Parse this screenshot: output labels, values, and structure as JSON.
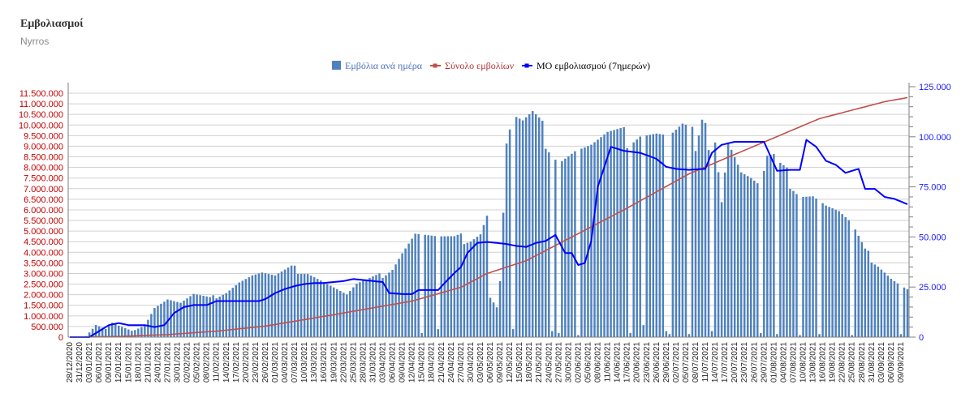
{
  "header": {
    "title": "Εμβολιασμοί",
    "subtitle": "Nyrros"
  },
  "colors": {
    "bars": "#4f81bd",
    "total": "#c0504d",
    "avg": "#0000ff",
    "left_axis": "#c00000",
    "right_axis": "#1a1aff",
    "grid": "#d0d0d0"
  },
  "chart_data": {
    "type": "bar",
    "legend": {
      "position": "top-center",
      "items": [
        {
          "label": "Εμβόλια ανά ημέρα",
          "symbol": "bar"
        },
        {
          "label": "Σύνολο εμβολίων",
          "symbol": "line"
        },
        {
          "label": "ΜΟ εμβολιασμού (7ημερών)",
          "symbol": "line"
        }
      ]
    },
    "y_left": {
      "min": 0,
      "max": 11500000,
      "step": 500000,
      "ticks": [
        "0",
        "500.000",
        "1.000.000",
        "1.500.000",
        "2.000.000",
        "2.500.000",
        "3.000.000",
        "3.500.000",
        "4.000.000",
        "4.500.000",
        "5.000.000",
        "5.500.000",
        "6.000.000",
        "6.500.000",
        "7.000.000",
        "7.500.000",
        "8.000.000",
        "8.500.000",
        "9.000.000",
        "9.500.000",
        "10.000.000",
        "10.500.000",
        "11.000.000",
        "11.500.000"
      ]
    },
    "y_right": {
      "min": 0,
      "max": 125000,
      "ticks": [
        {
          "label": "0",
          "value": 0
        },
        {
          "label": "25.000",
          "value": 25000
        },
        {
          "label": "50.000",
          "value": 50000
        },
        {
          "label": "75.000",
          "value": 75000
        },
        {
          "label": "100.000",
          "value": 100000
        },
        {
          "label": "125.000",
          "value": 125000
        }
      ]
    },
    "x": {
      "start": "28/12/2020",
      "end": "10/09/2021",
      "tick_labels": [
        "28/12/2020",
        "31/12/2020",
        "03/01/2021",
        "06/01/2021",
        "09/01/2021",
        "12/01/2021",
        "15/01/2021",
        "18/01/2021",
        "21/01/2021",
        "24/01/2021",
        "27/01/2021",
        "30/01/2021",
        "02/02/2021",
        "05/02/2021",
        "08/02/2021",
        "11/02/2021",
        "14/02/2021",
        "17/02/2021",
        "20/02/2021",
        "23/02/2021",
        "26/02/2021",
        "01/03/2021",
        "04/03/2021",
        "07/03/2021",
        "10/03/2021",
        "13/03/2021",
        "16/03/2021",
        "19/03/2021",
        "22/03/2021",
        "25/03/2021",
        "28/03/2021",
        "31/03/2021",
        "03/04/2021",
        "06/04/2021",
        "09/04/2021",
        "12/04/2021",
        "15/04/2021",
        "18/04/2021",
        "21/04/2021",
        "24/04/2021",
        "27/04/2021",
        "30/04/2021",
        "03/05/2021",
        "06/05/2021",
        "09/05/2021",
        "12/05/2021",
        "15/05/2021",
        "18/05/2021",
        "21/05/2021",
        "24/05/2021",
        "27/05/2021",
        "30/05/2021",
        "02/06/2021",
        "05/06/2021",
        "08/06/2021",
        "11/06/2021",
        "14/06/2021",
        "17/06/2021",
        "20/06/2021",
        "23/06/2021",
        "26/06/2021",
        "29/06/2021",
        "02/07/2021",
        "05/07/2021",
        "08/07/2021",
        "11/07/2021",
        "14/07/2021",
        "17/07/2021",
        "20/07/2021",
        "23/07/2021",
        "26/07/2021",
        "29/07/2021",
        "01/08/2021",
        "04/08/2021",
        "07/08/2021",
        "10/08/2021",
        "13/08/2021",
        "16/08/2021",
        "19/08/2021",
        "22/08/2021",
        "25/08/2021",
        "28/08/2021",
        "31/08/2021",
        "03/09/2021",
        "06/09/2021",
        "09/09/2021"
      ]
    },
    "series": [
      {
        "name": "Εμβόλια ανά ημέρα",
        "type": "bar",
        "axis": "right",
        "keypoints": [
          [
            0,
            0
          ],
          [
            3,
            0
          ],
          [
            5,
            500
          ],
          [
            8,
            6000
          ],
          [
            11,
            4000
          ],
          [
            13,
            7000
          ],
          [
            15,
            5500
          ],
          [
            19,
            3000
          ],
          [
            23,
            6000
          ],
          [
            26,
            15000
          ],
          [
            30,
            19000
          ],
          [
            34,
            17000
          ],
          [
            38,
            21000
          ],
          [
            43,
            19000
          ],
          [
            48,
            23000
          ],
          [
            52,
            28000
          ],
          [
            56,
            31000
          ],
          [
            59,
            32000
          ],
          [
            63,
            30000
          ],
          [
            68,
            34000
          ],
          [
            73,
            33000
          ],
          [
            78,
            28000
          ],
          [
            80,
            26000
          ],
          [
            85,
            21000
          ],
          [
            88,
            26000
          ],
          [
            95,
            30000
          ],
          [
            99,
            35000
          ],
          [
            102,
            43000
          ],
          [
            106,
            52000
          ],
          [
            113,
            49000
          ],
          [
            118,
            48000
          ],
          [
            123,
            50000
          ],
          [
            126,
            53000
          ],
          [
            128,
            62000
          ],
          [
            129,
            20000
          ],
          [
            131,
            15000
          ],
          [
            132,
            28000
          ],
          [
            134,
            96000
          ],
          [
            136,
            109000
          ],
          [
            139,
            105000
          ],
          [
            142,
            108000
          ],
          [
            145,
            102000
          ],
          [
            150,
            90000
          ],
          [
            155,
            94000
          ],
          [
            160,
            95000
          ],
          [
            165,
            99000
          ],
          [
            170,
            99000
          ],
          [
            175,
            104000
          ],
          [
            180,
            103000
          ],
          [
            184,
            100000
          ],
          [
            186,
            102000
          ],
          [
            188,
            104000
          ],
          [
            191,
            101000
          ],
          [
            192,
            89000
          ],
          [
            194,
            103000
          ],
          [
            196,
            99000
          ],
          [
            198,
            102000
          ],
          [
            200,
            70000
          ],
          [
            202,
            100000
          ],
          [
            206,
            83000
          ],
          [
            209,
            79000
          ],
          [
            212,
            74000
          ],
          [
            214,
            88000
          ],
          [
            216,
            88000
          ],
          [
            218,
            83000
          ],
          [
            222,
            77000
          ],
          [
            224,
            73000
          ],
          [
            228,
            72000
          ],
          [
            232,
            66000
          ],
          [
            236,
            62000
          ],
          [
            240,
            55000
          ],
          [
            244,
            42000
          ],
          [
            248,
            37000
          ],
          [
            252,
            30000
          ],
          [
            255,
            26000
          ],
          [
            258,
            23000
          ],
          [
            262,
            23000
          ],
          [
            266,
            27000
          ],
          [
            270,
            32000
          ],
          [
            274,
            31000
          ],
          [
            277,
            28000
          ],
          [
            280,
            27000
          ],
          [
            283,
            28000
          ],
          [
            286,
            28000
          ]
        ],
        "dips": [
          [
            108,
            2000
          ],
          [
            113,
            4000
          ],
          [
            136,
            4000
          ],
          [
            148,
            3000
          ],
          [
            150,
            2000
          ],
          [
            156,
            1000
          ],
          [
            172,
            2000
          ],
          [
            176,
            6000
          ],
          [
            183,
            3000
          ],
          [
            184,
            1500
          ],
          [
            190,
            1500
          ],
          [
            197,
            3000
          ],
          [
            212,
            2000
          ],
          [
            217,
            1500
          ],
          [
            224,
            1000
          ],
          [
            230,
            1500
          ],
          [
            240,
            1000
          ],
          [
            255,
            1500
          ],
          [
            270,
            1000
          ],
          [
            285,
            500
          ]
        ]
      },
      {
        "name": "Σύνολο εμβολίων",
        "type": "line",
        "axis": "left",
        "keypoints": [
          [
            0,
            0
          ],
          [
            15,
            30000
          ],
          [
            30,
            120000
          ],
          [
            45,
            280000
          ],
          [
            60,
            520000
          ],
          [
            75,
            900000
          ],
          [
            90,
            1300000
          ],
          [
            105,
            1700000
          ],
          [
            120,
            2350000
          ],
          [
            128,
            3000000
          ],
          [
            132,
            3200000
          ],
          [
            140,
            3600000
          ],
          [
            150,
            4400000
          ],
          [
            170,
            6000000
          ],
          [
            190,
            7700000
          ],
          [
            210,
            9000000
          ],
          [
            230,
            10300000
          ],
          [
            250,
            11100000
          ],
          [
            270,
            11650000
          ],
          [
            287,
            12200000
          ]
        ]
      },
      {
        "name": "ΜΟ εμβολιασμού (7ημερών)",
        "type": "line",
        "axis": "right",
        "keypoints": [
          [
            0,
            0
          ],
          [
            3,
            0
          ],
          [
            6,
            0
          ],
          [
            9,
            3000
          ],
          [
            12,
            6000
          ],
          [
            15,
            7000
          ],
          [
            18,
            6000
          ],
          [
            23,
            6000
          ],
          [
            26,
            5000
          ],
          [
            29,
            6000
          ],
          [
            32,
            12000
          ],
          [
            35,
            15000
          ],
          [
            38,
            16000
          ],
          [
            42,
            16000
          ],
          [
            45,
            18000
          ],
          [
            50,
            18000
          ],
          [
            55,
            18000
          ],
          [
            58,
            18000
          ],
          [
            60,
            19000
          ],
          [
            63,
            22000
          ],
          [
            66,
            24000
          ],
          [
            69,
            25500
          ],
          [
            72,
            26500
          ],
          [
            75,
            27000
          ],
          [
            78,
            27000
          ],
          [
            81,
            27500
          ],
          [
            84,
            28000
          ],
          [
            87,
            29000
          ],
          [
            90,
            28500
          ],
          [
            93,
            28000
          ],
          [
            96,
            27500
          ],
          [
            98,
            22000
          ],
          [
            102,
            21500
          ],
          [
            105,
            21500
          ],
          [
            107,
            23500
          ],
          [
            110,
            23500
          ],
          [
            113,
            23500
          ],
          [
            115,
            27000
          ],
          [
            118,
            32000
          ],
          [
            120,
            35000
          ],
          [
            122,
            42000
          ],
          [
            125,
            47000
          ],
          [
            128,
            47500
          ],
          [
            131,
            47000
          ],
          [
            134,
            46500
          ],
          [
            137,
            45500
          ],
          [
            140,
            45000
          ],
          [
            143,
            47000
          ],
          [
            146,
            48000
          ],
          [
            149,
            51000
          ],
          [
            152,
            42000
          ],
          [
            154,
            42000
          ],
          [
            156,
            36000
          ],
          [
            158,
            37000
          ],
          [
            160,
            48000
          ],
          [
            162,
            75000
          ],
          [
            164,
            85000
          ],
          [
            166,
            95000
          ],
          [
            170,
            93000
          ],
          [
            175,
            92000
          ],
          [
            180,
            89000
          ],
          [
            183,
            85000
          ],
          [
            186,
            84000
          ],
          [
            190,
            83500
          ],
          [
            195,
            84000
          ],
          [
            197,
            92000
          ],
          [
            200,
            96000
          ],
          [
            204,
            97500
          ],
          [
            208,
            97500
          ],
          [
            213,
            97500
          ],
          [
            217,
            83000
          ],
          [
            221,
            83500
          ],
          [
            224,
            83500
          ],
          [
            226,
            98500
          ],
          [
            229,
            95000
          ],
          [
            232,
            88000
          ],
          [
            235,
            86000
          ],
          [
            238,
            82000
          ],
          [
            240,
            83000
          ],
          [
            242,
            84000
          ],
          [
            244,
            74000
          ],
          [
            247,
            74000
          ],
          [
            250,
            70000
          ],
          [
            253,
            69000
          ],
          [
            256,
            67000
          ],
          [
            259,
            65000
          ],
          [
            262,
            62000
          ],
          [
            265,
            57000
          ],
          [
            268,
            50000
          ],
          [
            271,
            44000
          ],
          [
            274,
            39000
          ],
          [
            277,
            35000
          ],
          [
            280,
            31000
          ],
          [
            283,
            27000
          ],
          [
            285,
            24000
          ],
          [
            287,
            23000
          ]
        ]
      }
    ]
  }
}
